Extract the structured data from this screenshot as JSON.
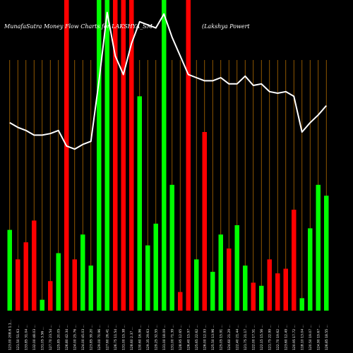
{
  "chart_data": {
    "type": "bar",
    "title": "MunafaSutra  Money  Flow  Charts  for  LAKSHYA_SM",
    "subtitle": "(Lakshya  Powert",
    "colors": {
      "background": "#000000",
      "up": "#00ff00",
      "down": "#ff0000",
      "grid": "#b36b00",
      "line": "#ffffff"
    },
    "ylim": [
      0,
      100
    ],
    "grid": true,
    "bars": [
      {
        "label": "123.00 208.6 1.1...",
        "dir": "up",
        "value": 26.0
      },
      {
        "label": "121.50 51.63 ...",
        "dir": "down",
        "value": 16.5
      },
      {
        "label": "133.85 31.04 ...",
        "dir": "down",
        "value": 22.0
      },
      {
        "label": "132.00 48.03 ...",
        "dir": "down",
        "value": 29.0
      },
      {
        "label": "131.05 3.56 ...",
        "dir": "up",
        "value": 3.5
      },
      {
        "label": "127.70 23.54 ...",
        "dir": "down",
        "value": 9.5
      },
      {
        "label": "125.85 20.05 ...",
        "dir": "up",
        "value": 18.5
      },
      {
        "label": "126.80 42.34 ...",
        "dir": "down",
        "value": 100
      },
      {
        "label": "124.00 25.76 ...",
        "dir": "down",
        "value": 16.5
      },
      {
        "label": "124.00 45.03 ...",
        "dir": "up",
        "value": 24.5
      },
      {
        "label": "123.85 39.20 ...",
        "dir": "up",
        "value": 14.5
      },
      {
        "label": "129.00 70.96 ...",
        "dir": "up",
        "value": 100
      },
      {
        "label": "127.60 26.41 ...",
        "dir": "up",
        "value": 100
      },
      {
        "label": "126.75 11.54 ...",
        "dir": "down",
        "value": 100
      },
      {
        "label": "131.00 15.38 ...",
        "dir": "down",
        "value": 100
      },
      {
        "label": "128.60 2.37 ...",
        "dir": "down",
        "value": 100
      },
      {
        "label": "130.60 16.96 ...",
        "dir": "up",
        "value": 69.0
      },
      {
        "label": "129.35 29.63 ...",
        "dir": "up",
        "value": 21.0
      },
      {
        "label": "129.25 32.55 ...",
        "dir": "up",
        "value": 28.0
      },
      {
        "label": "131.00 18.09 ...",
        "dir": "up",
        "value": 100
      },
      {
        "label": "131.00 71.39 ...",
        "dir": "up",
        "value": 40.5
      },
      {
        "label": "128.95 12.65 ...",
        "dir": "down",
        "value": 6.0
      },
      {
        "label": "126.40 15.97 ...",
        "dir": "down",
        "value": 100
      },
      {
        "label": "125.65 22.62 ...",
        "dir": "up",
        "value": 16.5
      },
      {
        "label": "126.00 12.93 ...",
        "dir": "down",
        "value": 57.5
      },
      {
        "label": "125.50 13.96 ...",
        "dir": "up",
        "value": 12.5
      },
      {
        "label": "125.05 15.91 ...",
        "dir": "up",
        "value": 24.5
      },
      {
        "label": "124.60 21.29 ...",
        "dir": "down",
        "value": 20.0
      },
      {
        "label": "122.40 21.44 ...",
        "dir": "up",
        "value": 27.5
      },
      {
        "label": "121.75 21.17 ...",
        "dir": "up",
        "value": 14.5
      },
      {
        "label": "122.00 17.51 ...",
        "dir": "down",
        "value": 9.0
      },
      {
        "label": "122.15 15.56 ...",
        "dir": "up",
        "value": 8.0
      },
      {
        "label": "121.75 22.99 ...",
        "dir": "down",
        "value": 16.5
      },
      {
        "label": "122.70 19.62 ...",
        "dir": "down",
        "value": 12.0
      },
      {
        "label": "123.60 12.49 ...",
        "dir": "down",
        "value": 13.5
      },
      {
        "label": "120.95 17.72 ...",
        "dir": "down",
        "value": 32.5
      },
      {
        "label": "118.10 13.04 ...",
        "dir": "up",
        "value": 4.0
      },
      {
        "label": "120.50 19.07 ...",
        "dir": "up",
        "value": 26.5
      },
      {
        "label": "124.90 19.67 ...",
        "dir": "up",
        "value": 40.5
      },
      {
        "label": "126.85 18.55 ...",
        "dir": "up",
        "value": 37.0
      }
    ],
    "line": [
      60.5,
      59.0,
      58.0,
      56.5,
      56.5,
      57.0,
      58.0,
      53.0,
      52.0,
      53.5,
      54.5,
      74.0,
      96.0,
      82.0,
      76.0,
      86.0,
      93.0,
      92.0,
      91.0,
      95.5,
      88.0,
      82.0,
      76.0,
      75.0,
      74.0,
      74.0,
      75.0,
      73.0,
      73.0,
      75.5,
      72.5,
      73.0,
      70.5,
      70.0,
      70.5,
      69.0,
      57.5,
      60.5,
      63.0,
      66.0
    ]
  }
}
